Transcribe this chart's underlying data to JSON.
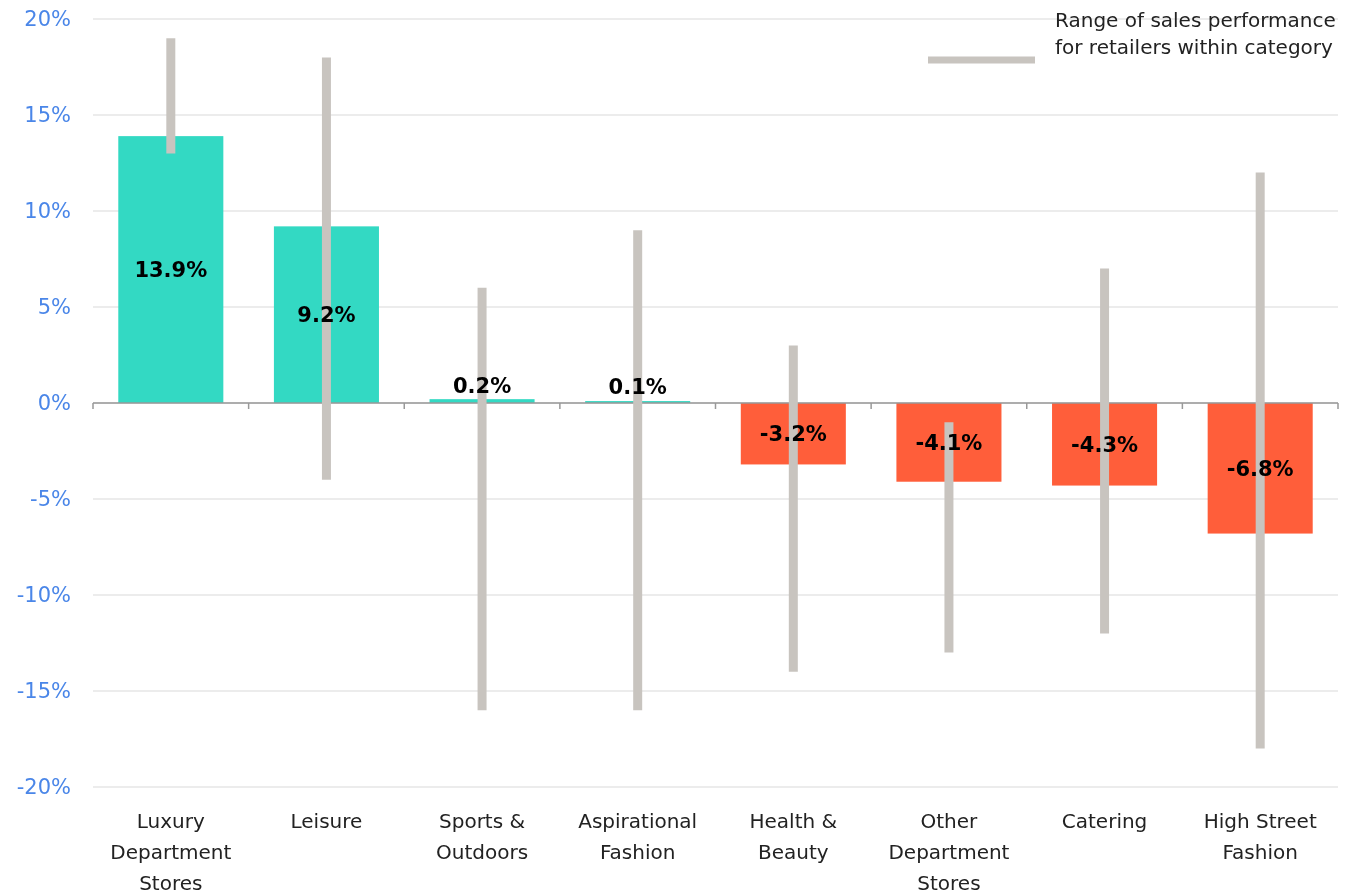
{
  "chart_data": {
    "type": "bar",
    "categories": [
      "Luxury\nDepartment\nStores",
      "Leisure",
      "Sports &\nOutdoors",
      "Aspirational\nFashion",
      "Health &\nBeauty",
      "Other\nDepartment\nStores",
      "Catering",
      "High Street\nFashion"
    ],
    "values": [
      13.9,
      9.2,
      0.2,
      0.1,
      -3.2,
      -4.1,
      -4.3,
      -6.8
    ],
    "colors": [
      "#33d9c3",
      "#33d9c3",
      "#33d9c3",
      "#33d9c3",
      "#ff5e3a",
      "#ff5e3a",
      "#ff5e3a",
      "#ff5e3a"
    ],
    "value_labels": [
      "13.9%",
      "9.2%",
      "0.2%",
      "0.1%",
      "-3.2%",
      "-4.1%",
      "-4.3%",
      "-6.8%"
    ],
    "errors": [
      [
        13,
        19
      ],
      [
        -4,
        18
      ],
      [
        -16,
        6
      ],
      [
        -16,
        9
      ],
      [
        -14,
        3
      ],
      [
        -13,
        -1
      ],
      [
        -12,
        7
      ],
      [
        -18,
        12
      ]
    ],
    "annotations": [
      "Range of sales performance\nfor retailers within category"
    ],
    "ylim": [
      -20,
      20
    ],
    "yticks": [
      {
        "value": -20,
        "label": "-20%"
      },
      {
        "value": -15,
        "label": "-15%"
      },
      {
        "value": -10,
        "label": "-10%"
      },
      {
        "value": -5,
        "label": "-5%"
      },
      {
        "value": 0,
        "label": "0%"
      },
      {
        "value": 5,
        "label": "5%"
      },
      {
        "value": 10,
        "label": "10%"
      },
      {
        "value": 15,
        "label": "15%"
      },
      {
        "value": 20,
        "label": "20%"
      }
    ],
    "grid": "y"
  }
}
